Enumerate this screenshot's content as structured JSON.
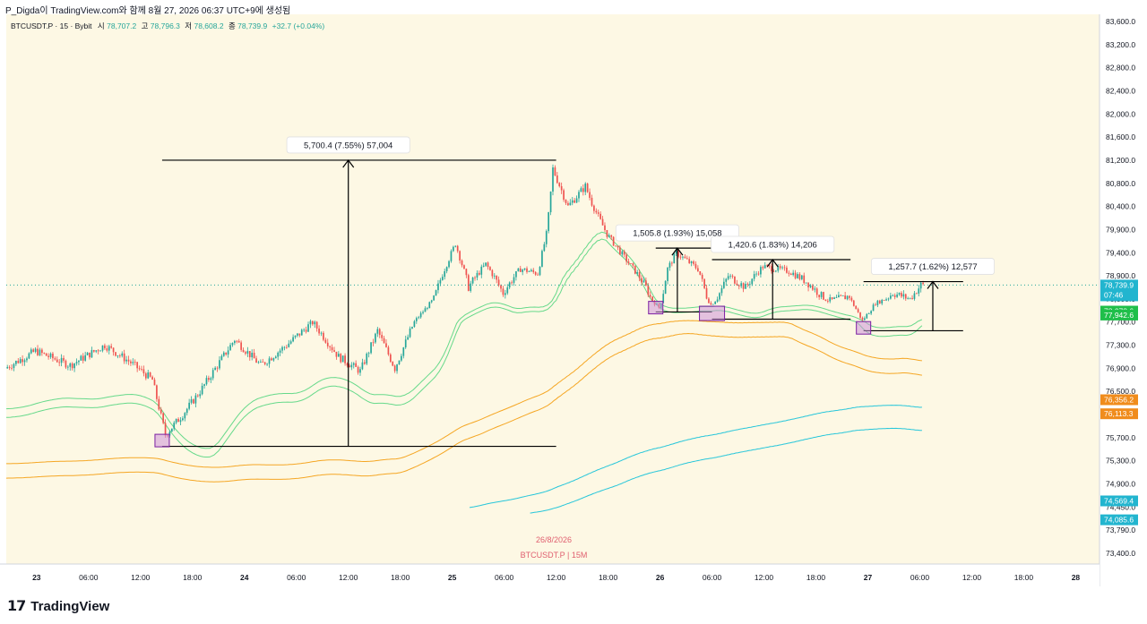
{
  "header": {
    "caption": "P_Digda이 TradingView.com와 함께 8월 27, 2026 06:37 UTC+9에 생성됨"
  },
  "legend": {
    "symbol": "BTCUSDT.P · 15 · Bybit",
    "open_label": "시",
    "open": "78,707.2",
    "high_label": "고",
    "high": "78,796.3",
    "low_label": "저",
    "low": "78,608.2",
    "close_label": "종",
    "close": "78,739.9",
    "change": "+32.7 (+0.04%)"
  },
  "watermark": {
    "date": "26/8/2026",
    "symbol": "BTCUSDT.P | 15M"
  },
  "footer": {
    "brand": "TradingView"
  },
  "colors": {
    "background": "#fdf8e4",
    "bull": "#26a69a",
    "bear": "#ef5350",
    "green_band": "#66d98a",
    "orange_band": "#f5a623",
    "cyan_band": "#26c6da",
    "price_tag": "#22b5cf",
    "green_tag": "#1fbf4a",
    "orange_tag": "#f08c1c"
  },
  "chart_data": {
    "type": "candlestick",
    "y_axis": {
      "range": [
        73300,
        83700
      ],
      "ticks": [
        83600,
        83200,
        82800,
        82400,
        82000,
        81600,
        81200,
        80800,
        80400,
        79900,
        79400,
        78900,
        78500,
        77700,
        77300,
        76900,
        76500,
        76100,
        75700,
        75300,
        74900,
        74450,
        73790,
        73400
      ],
      "tick_labels": [
        "83,600.0",
        "83,200.0",
        "82,800.0",
        "82,400.0",
        "82,000.0",
        "81,600.0",
        "81,200.0",
        "80,800.0",
        "80,400.0",
        "79,900.0",
        "79,400.0",
        "78,900.0",
        "78,500.0",
        "77,700.0",
        "77,300.0",
        "76,900.0",
        "76,500.0",
        "76,100.0",
        "75,700.0",
        "75,300.0",
        "74,900.0",
        "74,450.0",
        "73,790.0",
        "73,400.0"
      ]
    },
    "x_axis": {
      "tick_labels": [
        "23",
        "06:00",
        "12:00",
        "18:00",
        "24",
        "06:00",
        "12:00",
        "18:00",
        "25",
        "06:00",
        "12:00",
        "18:00",
        "26",
        "06:00",
        "12:00",
        "18:00",
        "27",
        "06:00",
        "12:00",
        "18:00",
        "28"
      ],
      "range": [
        "2026-08-22 20:30",
        "2026-08-28 02:45"
      ]
    },
    "price_path": [
      [
        "2026-08-22 20:30",
        76900
      ],
      [
        "2026-08-23 00:00",
        77200
      ],
      [
        "2026-08-23 04:00",
        76950
      ],
      [
        "2026-08-23 08:00",
        77300
      ],
      [
        "2026-08-23 11:00",
        77000
      ],
      [
        "2026-08-23 13:30",
        76700
      ],
      [
        "2026-08-23 15:00",
        75750
      ],
      [
        "2026-08-23 17:00",
        76100
      ],
      [
        "2026-08-23 19:00",
        76500
      ],
      [
        "2026-08-23 23:00",
        77400
      ],
      [
        "2026-08-24 02:00",
        76950
      ],
      [
        "2026-08-24 05:00",
        77300
      ],
      [
        "2026-08-24 08:00",
        77700
      ],
      [
        "2026-08-24 11:00",
        77100
      ],
      [
        "2026-08-24 13:30",
        76850
      ],
      [
        "2026-08-24 15:30",
        77550
      ],
      [
        "2026-08-24 17:30",
        76900
      ],
      [
        "2026-08-24 20:00",
        77800
      ],
      [
        "2026-08-24 22:00",
        78500
      ],
      [
        "2026-08-25 00:30",
        79600
      ],
      [
        "2026-08-25 02:00",
        78700
      ],
      [
        "2026-08-25 04:00",
        79150
      ],
      [
        "2026-08-25 06:00",
        78600
      ],
      [
        "2026-08-25 08:00",
        79050
      ],
      [
        "2026-08-25 10:00",
        78950
      ],
      [
        "2026-08-25 11:00",
        79800
      ],
      [
        "2026-08-25 11:45",
        81050
      ],
      [
        "2026-08-25 13:30",
        80400
      ],
      [
        "2026-08-25 15:30",
        80750
      ],
      [
        "2026-08-25 18:00",
        79800
      ],
      [
        "2026-08-25 20:00",
        79300
      ],
      [
        "2026-08-25 22:30",
        78700
      ],
      [
        "2026-08-26 00:00",
        78200
      ],
      [
        "2026-08-26 01:00",
        79050
      ],
      [
        "2026-08-26 02:00",
        79400
      ],
      [
        "2026-08-26 04:30",
        79050
      ],
      [
        "2026-08-26 06:00",
        78300
      ],
      [
        "2026-08-26 08:00",
        78900
      ],
      [
        "2026-08-26 10:00",
        78700
      ],
      [
        "2026-08-26 12:00",
        79100
      ],
      [
        "2026-08-26 15:00",
        79000
      ],
      [
        "2026-08-26 17:00",
        78800
      ],
      [
        "2026-08-26 19:30",
        78450
      ],
      [
        "2026-08-26 22:00",
        78550
      ],
      [
        "2026-08-26 23:30",
        77750
      ],
      [
        "2026-08-27 01:00",
        78350
      ],
      [
        "2026-08-27 03:00",
        78600
      ],
      [
        "2026-08-27 05:00",
        78500
      ],
      [
        "2026-08-27 06:15",
        78740
      ]
    ],
    "last_price": {
      "value": 78739.9,
      "label": "78,739.9",
      "countdown": "07:46"
    },
    "band_tags": [
      {
        "value": 78078.6,
        "label": "78,078.6",
        "color": "green"
      },
      {
        "value": 77942.6,
        "label": "77,942.6",
        "color": "green"
      },
      {
        "value": 76356.2,
        "label": "76,356.2",
        "color": "orange"
      },
      {
        "value": 76113.3,
        "label": "76,113.3",
        "color": "orange"
      },
      {
        "value": 74569.4,
        "label": "74,569.4",
        "color": "cyan"
      },
      {
        "value": 74085.6,
        "label": "74,085.6",
        "color": "cyan"
      }
    ],
    "measurements": [
      {
        "label": "5,700.4 (7.55%) 57,004",
        "low": 75550,
        "high": 81200,
        "from": "2026-08-23 14:30",
        "to": "2026-08-25 12:00",
        "arrow_at": "2026-08-24 12:00"
      },
      {
        "label": "1,505.8 (1.93%) 15,058",
        "low": 78050,
        "high": 79500,
        "from": "2026-08-25 23:30",
        "to": "2026-08-26 06:00",
        "arrow_at": "2026-08-26 02:00"
      },
      {
        "label": "1,420.6 (1.83%) 14,206",
        "low": 77800,
        "high": 79250,
        "from": "2026-08-26 06:00",
        "to": "2026-08-26 22:00",
        "arrow_at": "2026-08-26 13:00"
      },
      {
        "label": "1,257.7 (1.62%) 12,577",
        "low": 77550,
        "high": 78800,
        "from": "2026-08-26 23:30",
        "to": "2026-08-27 11:00",
        "arrow_at": "2026-08-27 07:30"
      }
    ],
    "pivot_boxes": [
      {
        "time": "2026-08-23 14:30",
        "value": 75650
      },
      {
        "time": "2026-08-25 23:30",
        "value": 78200
      },
      {
        "time": "2026-08-26 06:00",
        "value": 78000
      },
      {
        "time": "2026-08-26 23:30",
        "value": 77600
      }
    ]
  }
}
